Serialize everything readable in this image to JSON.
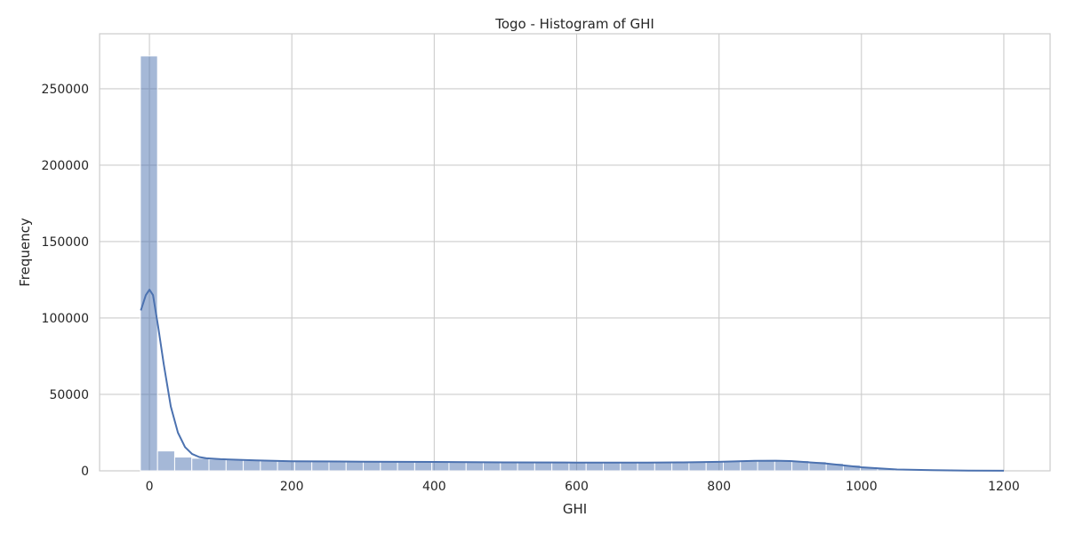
{
  "chart_data": {
    "type": "bar",
    "title": "Togo - Histogram of GHI",
    "xlabel": "GHI",
    "ylabel": "Frequency",
    "xlim": [
      -70,
      1265
    ],
    "ylim": [
      0,
      286000
    ],
    "x_ticks": [
      0,
      200,
      400,
      600,
      800,
      1000,
      1200
    ],
    "x_tick_labels": [
      "0",
      "200",
      "400",
      "600",
      "800",
      "1000",
      "1200"
    ],
    "y_ticks": [
      0,
      50000,
      100000,
      150000,
      200000,
      250000
    ],
    "y_tick_labels": [
      "0",
      "50000",
      "100000",
      "150000",
      "200000",
      "250000"
    ],
    "grid": true,
    "bin_start": -12.7,
    "bin_width": 24.08,
    "values": [
      271500,
      13000,
      9000,
      8200,
      7600,
      7200,
      6900,
      6600,
      6400,
      6300,
      6200,
      6100,
      6000,
      6000,
      5900,
      5800,
      5800,
      5700,
      5600,
      5600,
      5500,
      5500,
      5500,
      5400,
      5400,
      5400,
      5400,
      5400,
      5400,
      5400,
      5500,
      5500,
      5600,
      5900,
      6200,
      6500,
      6900,
      7000,
      6700,
      6000,
      4900,
      3800,
      2600,
      1700,
      1100,
      700,
      450,
      280,
      150,
      70
    ],
    "kde": {
      "x": [
        -12,
        -5,
        0,
        5,
        12,
        20,
        30,
        40,
        50,
        60,
        70,
        80,
        100,
        150,
        200,
        300,
        400,
        500,
        600,
        700,
        750,
        800,
        850,
        880,
        900,
        950,
        1000,
        1050,
        1100,
        1150,
        1200
      ],
      "y": [
        105000,
        115000,
        118500,
        115000,
        95000,
        70000,
        42000,
        25000,
        15500,
        11000,
        9000,
        8200,
        7600,
        6800,
        6300,
        6000,
        5800,
        5500,
        5400,
        5400,
        5500,
        5900,
        6500,
        6600,
        6400,
        4800,
        2300,
        900,
        400,
        150,
        50
      ]
    },
    "bar_color": "#4c72b0",
    "line_color": "#4c72b0"
  }
}
